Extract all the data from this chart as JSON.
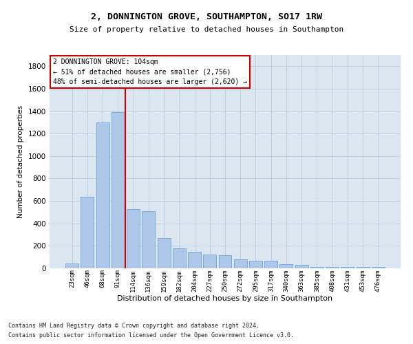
{
  "title1": "2, DONNINGTON GROVE, SOUTHAMPTON, SO17 1RW",
  "title2": "Size of property relative to detached houses in Southampton",
  "xlabel": "Distribution of detached houses by size in Southampton",
  "ylabel": "Number of detached properties",
  "footer1": "Contains HM Land Registry data © Crown copyright and database right 2024.",
  "footer2": "Contains public sector information licensed under the Open Government Licence v3.0.",
  "annotation_line1": "2 DONNINGTON GROVE: 104sqm",
  "annotation_line2": "← 51% of detached houses are smaller (2,756)",
  "annotation_line3": "48% of semi-detached houses are larger (2,620) →",
  "bar_color": "#aec6e8",
  "bar_edge_color": "#5b9bd5",
  "marker_color": "#cc0000",
  "categories": [
    "23sqm",
    "46sqm",
    "68sqm",
    "91sqm",
    "114sqm",
    "136sqm",
    "159sqm",
    "182sqm",
    "204sqm",
    "227sqm",
    "250sqm",
    "272sqm",
    "295sqm",
    "317sqm",
    "340sqm",
    "363sqm",
    "385sqm",
    "408sqm",
    "431sqm",
    "453sqm",
    "476sqm"
  ],
  "values": [
    40,
    640,
    1300,
    1390,
    530,
    510,
    270,
    175,
    150,
    120,
    115,
    80,
    65,
    65,
    35,
    30,
    10,
    10,
    10,
    10,
    10
  ],
  "ylim": [
    0,
    1900
  ],
  "yticks": [
    0,
    200,
    400,
    600,
    800,
    1000,
    1200,
    1400,
    1600,
    1800
  ],
  "grid_color": "#c0cfe0",
  "background_color": "#dce6f0",
  "vline_x": 3.5
}
